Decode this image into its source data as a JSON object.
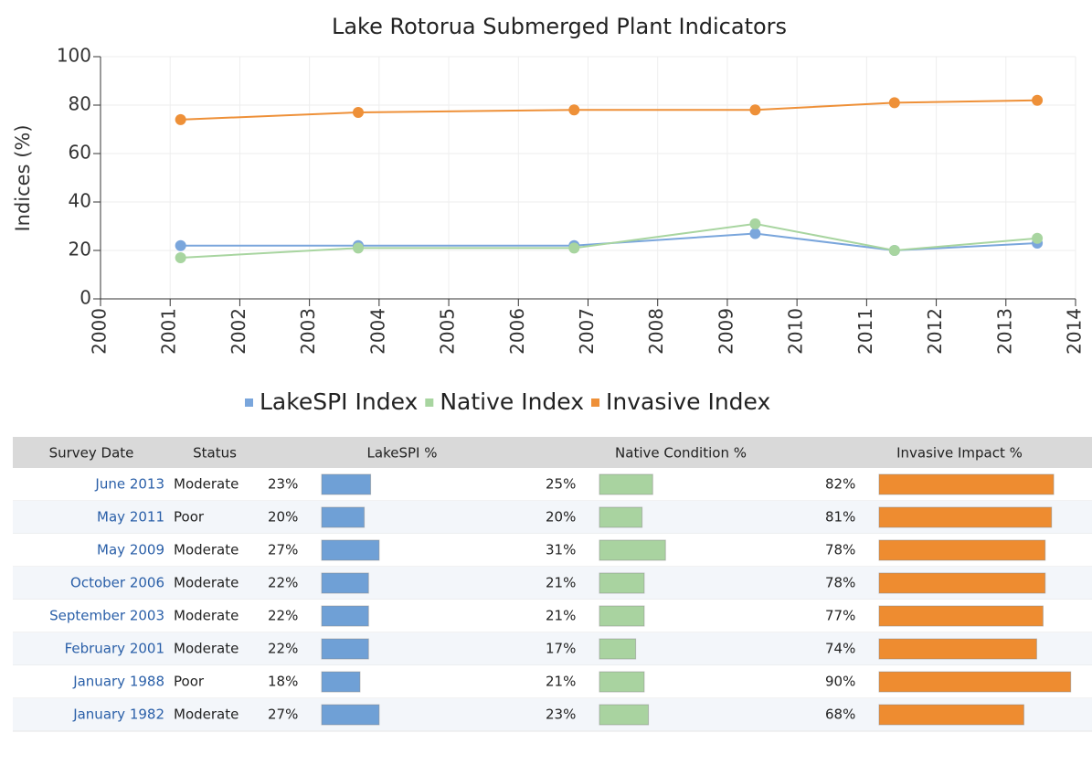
{
  "chart_data": {
    "type": "line",
    "title": "Lake Rotorua Submerged Plant Indicators",
    "y_label": "Indices (%)",
    "x": [
      2001.15,
      2003.7,
      2006.8,
      2009.4,
      2011.4,
      2013.45
    ],
    "series": [
      {
        "name": "LakeSPI Index",
        "color": "#7aa6dc",
        "values": [
          22,
          22,
          22,
          27,
          20,
          23
        ]
      },
      {
        "name": "Native Index",
        "color": "#a8d5a0",
        "values": [
          17,
          21,
          21,
          31,
          20,
          25
        ]
      },
      {
        "name": "Invasive Index",
        "color": "#ee9038",
        "values": [
          74,
          77,
          78,
          78,
          81,
          82
        ]
      }
    ],
    "xlim": [
      2000,
      2014
    ],
    "xticks": [
      2000,
      2001,
      2002,
      2003,
      2004,
      2005,
      2006,
      2007,
      2008,
      2009,
      2010,
      2011,
      2012,
      2013,
      2014
    ],
    "ylim": [
      0,
      100
    ],
    "yticks": [
      0,
      20,
      40,
      60,
      80,
      100
    ],
    "grid": true,
    "legend": "bottom"
  },
  "table": {
    "columns": [
      "Survey Date",
      "Status",
      "LakeSPI %",
      "Native Condition %",
      "Invasive Impact %"
    ],
    "bar_colors": [
      "#6fa0d6",
      "#a9d3a0",
      "#ee8c30"
    ],
    "rows": [
      {
        "date": "June 2013",
        "status": "Moderate",
        "values": [
          23,
          25,
          82
        ],
        "value_labels": [
          "23%",
          "25%",
          "82%"
        ]
      },
      {
        "date": "May 2011",
        "status": "Poor",
        "values": [
          20,
          20,
          81
        ],
        "value_labels": [
          "20%",
          "20%",
          "81%"
        ]
      },
      {
        "date": "May 2009",
        "status": "Moderate",
        "values": [
          27,
          31,
          78
        ],
        "value_labels": [
          "27%",
          "31%",
          "78%"
        ]
      },
      {
        "date": "October 2006",
        "status": "Moderate",
        "values": [
          22,
          21,
          78
        ],
        "value_labels": [
          "22%",
          "21%",
          "78%"
        ]
      },
      {
        "date": "September 2003",
        "status": "Moderate",
        "values": [
          22,
          21,
          77
        ],
        "value_labels": [
          "22%",
          "21%",
          "77%"
        ]
      },
      {
        "date": "February 2001",
        "status": "Moderate",
        "values": [
          22,
          17,
          74
        ],
        "value_labels": [
          "22%",
          "17%",
          "74%"
        ]
      },
      {
        "date": "January 1988",
        "status": "Poor",
        "values": [
          18,
          21,
          90
        ],
        "value_labels": [
          "18%",
          "21%",
          "90%"
        ]
      },
      {
        "date": "January 1982",
        "status": "Moderate",
        "values": [
          27,
          23,
          68
        ],
        "value_labels": [
          "27%",
          "23%",
          "68%"
        ]
      }
    ]
  }
}
